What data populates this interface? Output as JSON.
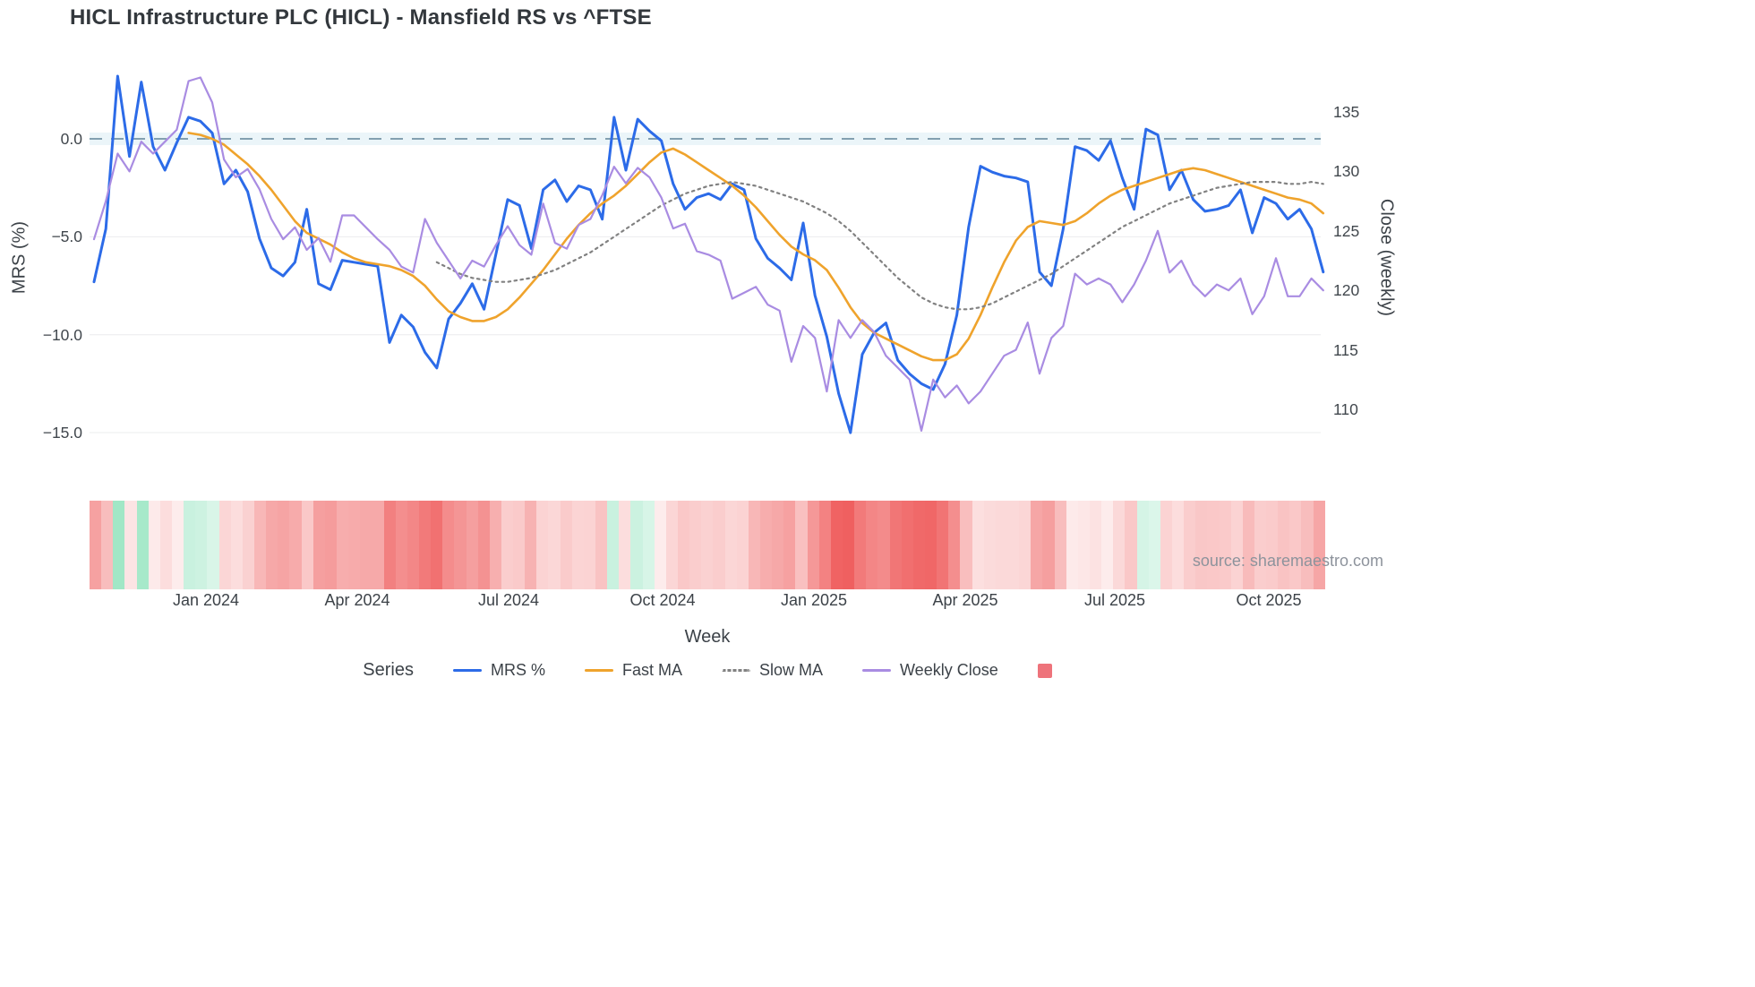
{
  "title": "HICL Infrastructure PLC (HICL) - Mansfield RS vs ^FTSE",
  "source": "source: sharemaestro.com",
  "legend": {
    "title": "Series",
    "items": [
      {
        "label": "MRS %",
        "color": "#2c6be8",
        "style": "solid"
      },
      {
        "label": "Fast MA",
        "color": "#efa32c",
        "style": "solid"
      },
      {
        "label": "Slow MA",
        "color": "#818181",
        "style": "dotted"
      },
      {
        "label": "Weekly Close",
        "color": "#a98ce2",
        "style": "solid"
      },
      {
        "label": "",
        "color": "#ee737b",
        "style": "square"
      }
    ]
  },
  "chart_data": {
    "type": "line",
    "title": "HICL Infrastructure PLC (HICL) - Mansfield RS vs ^FTSE",
    "xlabel": "Week",
    "x_unit": "weekly, Nov 2023 - Nov 2025",
    "x_tick_labels": [
      "Jan 2024",
      "Apr 2024",
      "Jul 2024",
      "Oct 2024",
      "Jan 2025",
      "Apr 2025",
      "Jul 2025",
      "Oct 2025"
    ],
    "x_tick_weeks": [
      9.5,
      22.3,
      35.1,
      48.1,
      60.9,
      73.7,
      86.4,
      99.4
    ],
    "weeks_total": 105,
    "left_axis": {
      "label": "MRS (%)",
      "tick_labels": [
        "0.0",
        "−5.0",
        "−10.0",
        "−15.0"
      ],
      "tick_values": [
        0,
        -5,
        -10,
        -15
      ],
      "range": [
        -16.5,
        4.6
      ]
    },
    "right_axis": {
      "label": "Close (weekly)",
      "tick_labels": [
        "135",
        "130",
        "125",
        "120",
        "115",
        "110"
      ],
      "tick_values": [
        135,
        130,
        125,
        120,
        115,
        110
      ],
      "range": [
        106.4,
        140.3
      ]
    },
    "zero_line": {
      "value": 0,
      "style": "dashed",
      "color": "#83a0b0"
    },
    "grid": "horizontal-light",
    "legend_position": "bottom-center",
    "series": [
      {
        "name": "MRS %",
        "axis": "left",
        "color": "#2c6be8",
        "style": "solid",
        "width": 3,
        "values": [
          -7.3,
          -4.6,
          3.2,
          -0.9,
          2.9,
          -0.4,
          -1.6,
          -0.2,
          1.1,
          0.9,
          0.3,
          -2.3,
          -1.6,
          -2.7,
          -5.1,
          -6.6,
          -7.0,
          -6.3,
          -3.6,
          -7.4,
          -7.7,
          -6.2,
          -6.3,
          -6.4,
          -6.5,
          -10.4,
          -9.0,
          -9.6,
          -10.9,
          -11.7,
          -9.2,
          -8.4,
          -7.4,
          -8.7,
          -5.9,
          -3.1,
          -3.4,
          -5.6,
          -2.6,
          -2.1,
          -3.2,
          -2.4,
          -2.6,
          -4.1,
          1.1,
          -1.6,
          1.0,
          0.4,
          -0.1,
          -2.3,
          -3.6,
          -3.0,
          -2.8,
          -3.1,
          -2.3,
          -2.6,
          -5.1,
          -6.1,
          -6.6,
          -7.2,
          -4.3,
          -8.0,
          -10.1,
          -13.0,
          -15.0,
          -11.0,
          -9.9,
          -9.4,
          -11.3,
          -12.0,
          -12.5,
          -12.8,
          -11.5,
          -9.0,
          -4.5,
          -1.4,
          -1.7,
          -1.9,
          -2.0,
          -2.2,
          -6.8,
          -7.5,
          -4.6,
          -0.4,
          -0.6,
          -1.1,
          -0.1,
          -2.0,
          -3.6,
          0.5,
          0.2,
          -2.6,
          -1.6,
          -3.1,
          -3.7,
          -3.6,
          -3.4,
          -2.6,
          -4.8,
          -3.0,
          -3.3,
          -4.1,
          -3.6,
          -4.6,
          -6.8
        ]
      },
      {
        "name": "Fast MA",
        "axis": "left",
        "color": "#efa32c",
        "style": "solid",
        "width": 2.6,
        "values": [
          null,
          null,
          null,
          null,
          null,
          null,
          null,
          null,
          0.3,
          0.2,
          0.0,
          -0.3,
          -0.8,
          -1.3,
          -1.9,
          -2.6,
          -3.4,
          -4.2,
          -4.8,
          -5.1,
          -5.4,
          -5.8,
          -6.1,
          -6.3,
          -6.4,
          -6.5,
          -6.7,
          -7.0,
          -7.5,
          -8.2,
          -8.8,
          -9.1,
          -9.3,
          -9.3,
          -9.1,
          -8.7,
          -8.1,
          -7.4,
          -6.7,
          -5.9,
          -5.1,
          -4.4,
          -3.8,
          -3.3,
          -2.9,
          -2.4,
          -1.8,
          -1.2,
          -0.7,
          -0.5,
          -0.8,
          -1.2,
          -1.6,
          -2.0,
          -2.4,
          -2.9,
          -3.5,
          -4.2,
          -4.9,
          -5.5,
          -5.9,
          -6.2,
          -6.7,
          -7.6,
          -8.6,
          -9.4,
          -9.9,
          -10.2,
          -10.5,
          -10.8,
          -11.1,
          -11.3,
          -11.3,
          -11.0,
          -10.2,
          -9.0,
          -7.6,
          -6.3,
          -5.2,
          -4.5,
          -4.2,
          -4.3,
          -4.4,
          -4.2,
          -3.8,
          -3.3,
          -2.9,
          -2.6,
          -2.4,
          -2.2,
          -2.0,
          -1.8,
          -1.6,
          -1.5,
          -1.6,
          -1.8,
          -2.0,
          -2.2,
          -2.4,
          -2.6,
          -2.8,
          -3.0,
          -3.1,
          -3.3,
          -3.8
        ]
      },
      {
        "name": "Slow MA",
        "axis": "left",
        "color": "#818181",
        "style": "dotted",
        "width": 2.2,
        "values": [
          null,
          null,
          null,
          null,
          null,
          null,
          null,
          null,
          null,
          null,
          null,
          null,
          null,
          null,
          null,
          null,
          null,
          null,
          null,
          null,
          null,
          null,
          null,
          null,
          null,
          null,
          null,
          null,
          null,
          -6.3,
          -6.6,
          -6.9,
          -7.1,
          -7.2,
          -7.3,
          -7.3,
          -7.2,
          -7.1,
          -6.9,
          -6.7,
          -6.4,
          -6.1,
          -5.8,
          -5.4,
          -5.0,
          -4.6,
          -4.2,
          -3.8,
          -3.4,
          -3.1,
          -2.8,
          -2.6,
          -2.4,
          -2.3,
          -2.2,
          -2.3,
          -2.4,
          -2.6,
          -2.8,
          -3.0,
          -3.2,
          -3.5,
          -3.8,
          -4.2,
          -4.7,
          -5.3,
          -5.9,
          -6.5,
          -7.1,
          -7.6,
          -8.1,
          -8.4,
          -8.6,
          -8.7,
          -8.7,
          -8.6,
          -8.4,
          -8.1,
          -7.8,
          -7.5,
          -7.2,
          -6.9,
          -6.5,
          -6.1,
          -5.7,
          -5.3,
          -4.9,
          -4.5,
          -4.2,
          -3.9,
          -3.6,
          -3.3,
          -3.1,
          -2.9,
          -2.7,
          -2.5,
          -2.4,
          -2.3,
          -2.2,
          -2.2,
          -2.2,
          -2.3,
          -2.3,
          -2.2,
          -2.3
        ]
      },
      {
        "name": "Weekly Close",
        "axis": "right",
        "color": "#a98ce2",
        "style": "solid",
        "width": 2.2,
        "values": [
          124.3,
          127.5,
          131.5,
          130.0,
          132.5,
          131.5,
          132.5,
          133.5,
          137.6,
          137.9,
          135.8,
          131.0,
          129.5,
          130.2,
          128.5,
          126.0,
          124.3,
          125.3,
          123.4,
          124.4,
          122.4,
          126.3,
          126.3,
          125.3,
          124.3,
          123.4,
          122.0,
          121.5,
          126.0,
          124.0,
          122.5,
          121.0,
          122.5,
          122.0,
          123.8,
          125.4,
          123.8,
          123.0,
          127.3,
          124.0,
          123.5,
          125.5,
          126.0,
          128.0,
          130.4,
          129.0,
          130.3,
          129.5,
          127.8,
          125.2,
          125.6,
          123.3,
          123.0,
          122.5,
          119.3,
          119.8,
          120.3,
          118.8,
          118.3,
          114.0,
          117.0,
          116.0,
          111.5,
          117.5,
          116.0,
          117.5,
          116.5,
          114.5,
          113.5,
          112.5,
          108.2,
          112.5,
          111.0,
          112.0,
          110.5,
          111.5,
          113.0,
          114.5,
          115.0,
          117.3,
          113.0,
          116.0,
          117.0,
          121.4,
          120.5,
          121.0,
          120.5,
          119.0,
          120.5,
          122.5,
          125.0,
          121.5,
          122.5,
          120.5,
          119.5,
          120.5,
          120.0,
          121.0,
          118.0,
          119.5,
          122.7,
          119.5,
          119.5,
          121.0,
          120.0
        ]
      }
    ],
    "heatmap_strip": {
      "description": "weekly color strip derived from MRS % (green = positive, red = negative, intensity scales with magnitude)",
      "source_series": "MRS %",
      "positive_color": "#8ce2ba",
      "negative_color": "#ee5454"
    }
  }
}
